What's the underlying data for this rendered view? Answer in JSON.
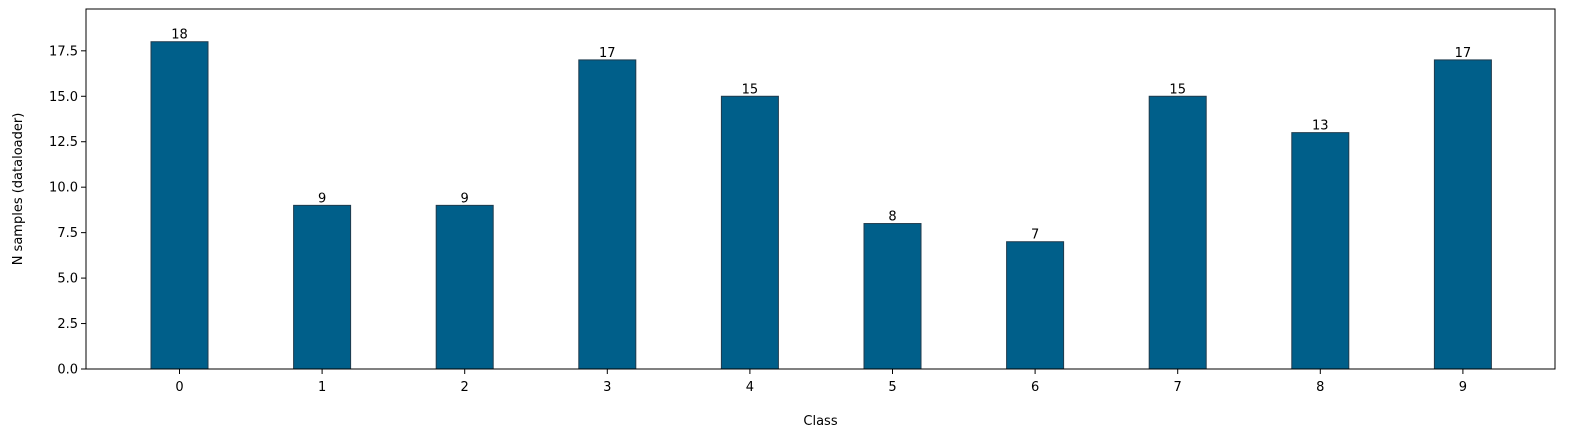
{
  "chart_data": {
    "type": "bar",
    "categories": [
      "0",
      "1",
      "2",
      "3",
      "4",
      "5",
      "6",
      "7",
      "8",
      "9"
    ],
    "values": [
      18,
      9,
      9,
      17,
      15,
      8,
      7,
      15,
      13,
      17
    ],
    "data_labels": [
      "18",
      "9",
      "9",
      "17",
      "15",
      "8",
      "7",
      "15",
      "13",
      "17"
    ],
    "title": "",
    "xlabel": "Class",
    "ylabel": "N samples (dataloader)",
    "ylim": [
      0,
      19.8
    ],
    "yticks": [
      0.0,
      2.5,
      5.0,
      7.5,
      10.0,
      12.5,
      15.0,
      17.5
    ],
    "ytick_labels": [
      "0.0",
      "2.5",
      "5.0",
      "7.5",
      "10.0",
      "12.5",
      "15.0",
      "17.5"
    ],
    "grid": false,
    "legend": "none",
    "bar_color": "#005f8a",
    "bar_edge_color": "#1f3b4d"
  }
}
